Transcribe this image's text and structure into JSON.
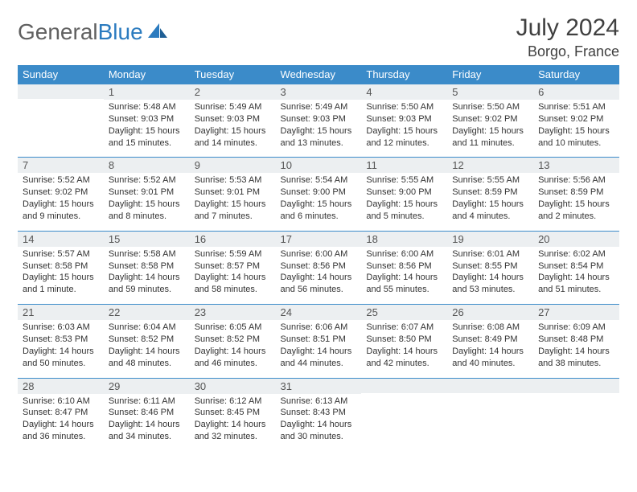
{
  "logo": {
    "general": "General",
    "blue": "Blue"
  },
  "title": {
    "month": "July 2024",
    "location": "Borgo, France"
  },
  "colors": {
    "header_bg": "#3b8bc9",
    "header_fg": "#ffffff",
    "daynum_bg": "#eceff1",
    "border": "#3b8bc9",
    "logo_blue": "#2b7bbf",
    "logo_gray": "#606060"
  },
  "dayNames": [
    "Sunday",
    "Monday",
    "Tuesday",
    "Wednesday",
    "Thursday",
    "Friday",
    "Saturday"
  ],
  "weeks": [
    [
      {
        "n": "",
        "sr": "",
        "ss": "",
        "dl1": "",
        "dl2": ""
      },
      {
        "n": "1",
        "sr": "Sunrise: 5:48 AM",
        "ss": "Sunset: 9:03 PM",
        "dl1": "Daylight: 15 hours",
        "dl2": "and 15 minutes."
      },
      {
        "n": "2",
        "sr": "Sunrise: 5:49 AM",
        "ss": "Sunset: 9:03 PM",
        "dl1": "Daylight: 15 hours",
        "dl2": "and 14 minutes."
      },
      {
        "n": "3",
        "sr": "Sunrise: 5:49 AM",
        "ss": "Sunset: 9:03 PM",
        "dl1": "Daylight: 15 hours",
        "dl2": "and 13 minutes."
      },
      {
        "n": "4",
        "sr": "Sunrise: 5:50 AM",
        "ss": "Sunset: 9:03 PM",
        "dl1": "Daylight: 15 hours",
        "dl2": "and 12 minutes."
      },
      {
        "n": "5",
        "sr": "Sunrise: 5:50 AM",
        "ss": "Sunset: 9:02 PM",
        "dl1": "Daylight: 15 hours",
        "dl2": "and 11 minutes."
      },
      {
        "n": "6",
        "sr": "Sunrise: 5:51 AM",
        "ss": "Sunset: 9:02 PM",
        "dl1": "Daylight: 15 hours",
        "dl2": "and 10 minutes."
      }
    ],
    [
      {
        "n": "7",
        "sr": "Sunrise: 5:52 AM",
        "ss": "Sunset: 9:02 PM",
        "dl1": "Daylight: 15 hours",
        "dl2": "and 9 minutes."
      },
      {
        "n": "8",
        "sr": "Sunrise: 5:52 AM",
        "ss": "Sunset: 9:01 PM",
        "dl1": "Daylight: 15 hours",
        "dl2": "and 8 minutes."
      },
      {
        "n": "9",
        "sr": "Sunrise: 5:53 AM",
        "ss": "Sunset: 9:01 PM",
        "dl1": "Daylight: 15 hours",
        "dl2": "and 7 minutes."
      },
      {
        "n": "10",
        "sr": "Sunrise: 5:54 AM",
        "ss": "Sunset: 9:00 PM",
        "dl1": "Daylight: 15 hours",
        "dl2": "and 6 minutes."
      },
      {
        "n": "11",
        "sr": "Sunrise: 5:55 AM",
        "ss": "Sunset: 9:00 PM",
        "dl1": "Daylight: 15 hours",
        "dl2": "and 5 minutes."
      },
      {
        "n": "12",
        "sr": "Sunrise: 5:55 AM",
        "ss": "Sunset: 8:59 PM",
        "dl1": "Daylight: 15 hours",
        "dl2": "and 4 minutes."
      },
      {
        "n": "13",
        "sr": "Sunrise: 5:56 AM",
        "ss": "Sunset: 8:59 PM",
        "dl1": "Daylight: 15 hours",
        "dl2": "and 2 minutes."
      }
    ],
    [
      {
        "n": "14",
        "sr": "Sunrise: 5:57 AM",
        "ss": "Sunset: 8:58 PM",
        "dl1": "Daylight: 15 hours",
        "dl2": "and 1 minute."
      },
      {
        "n": "15",
        "sr": "Sunrise: 5:58 AM",
        "ss": "Sunset: 8:58 PM",
        "dl1": "Daylight: 14 hours",
        "dl2": "and 59 minutes."
      },
      {
        "n": "16",
        "sr": "Sunrise: 5:59 AM",
        "ss": "Sunset: 8:57 PM",
        "dl1": "Daylight: 14 hours",
        "dl2": "and 58 minutes."
      },
      {
        "n": "17",
        "sr": "Sunrise: 6:00 AM",
        "ss": "Sunset: 8:56 PM",
        "dl1": "Daylight: 14 hours",
        "dl2": "and 56 minutes."
      },
      {
        "n": "18",
        "sr": "Sunrise: 6:00 AM",
        "ss": "Sunset: 8:56 PM",
        "dl1": "Daylight: 14 hours",
        "dl2": "and 55 minutes."
      },
      {
        "n": "19",
        "sr": "Sunrise: 6:01 AM",
        "ss": "Sunset: 8:55 PM",
        "dl1": "Daylight: 14 hours",
        "dl2": "and 53 minutes."
      },
      {
        "n": "20",
        "sr": "Sunrise: 6:02 AM",
        "ss": "Sunset: 8:54 PM",
        "dl1": "Daylight: 14 hours",
        "dl2": "and 51 minutes."
      }
    ],
    [
      {
        "n": "21",
        "sr": "Sunrise: 6:03 AM",
        "ss": "Sunset: 8:53 PM",
        "dl1": "Daylight: 14 hours",
        "dl2": "and 50 minutes."
      },
      {
        "n": "22",
        "sr": "Sunrise: 6:04 AM",
        "ss": "Sunset: 8:52 PM",
        "dl1": "Daylight: 14 hours",
        "dl2": "and 48 minutes."
      },
      {
        "n": "23",
        "sr": "Sunrise: 6:05 AM",
        "ss": "Sunset: 8:52 PM",
        "dl1": "Daylight: 14 hours",
        "dl2": "and 46 minutes."
      },
      {
        "n": "24",
        "sr": "Sunrise: 6:06 AM",
        "ss": "Sunset: 8:51 PM",
        "dl1": "Daylight: 14 hours",
        "dl2": "and 44 minutes."
      },
      {
        "n": "25",
        "sr": "Sunrise: 6:07 AM",
        "ss": "Sunset: 8:50 PM",
        "dl1": "Daylight: 14 hours",
        "dl2": "and 42 minutes."
      },
      {
        "n": "26",
        "sr": "Sunrise: 6:08 AM",
        "ss": "Sunset: 8:49 PM",
        "dl1": "Daylight: 14 hours",
        "dl2": "and 40 minutes."
      },
      {
        "n": "27",
        "sr": "Sunrise: 6:09 AM",
        "ss": "Sunset: 8:48 PM",
        "dl1": "Daylight: 14 hours",
        "dl2": "and 38 minutes."
      }
    ],
    [
      {
        "n": "28",
        "sr": "Sunrise: 6:10 AM",
        "ss": "Sunset: 8:47 PM",
        "dl1": "Daylight: 14 hours",
        "dl2": "and 36 minutes."
      },
      {
        "n": "29",
        "sr": "Sunrise: 6:11 AM",
        "ss": "Sunset: 8:46 PM",
        "dl1": "Daylight: 14 hours",
        "dl2": "and 34 minutes."
      },
      {
        "n": "30",
        "sr": "Sunrise: 6:12 AM",
        "ss": "Sunset: 8:45 PM",
        "dl1": "Daylight: 14 hours",
        "dl2": "and 32 minutes."
      },
      {
        "n": "31",
        "sr": "Sunrise: 6:13 AM",
        "ss": "Sunset: 8:43 PM",
        "dl1": "Daylight: 14 hours",
        "dl2": "and 30 minutes."
      },
      {
        "n": "",
        "sr": "",
        "ss": "",
        "dl1": "",
        "dl2": ""
      },
      {
        "n": "",
        "sr": "",
        "ss": "",
        "dl1": "",
        "dl2": ""
      },
      {
        "n": "",
        "sr": "",
        "ss": "",
        "dl1": "",
        "dl2": ""
      }
    ]
  ]
}
